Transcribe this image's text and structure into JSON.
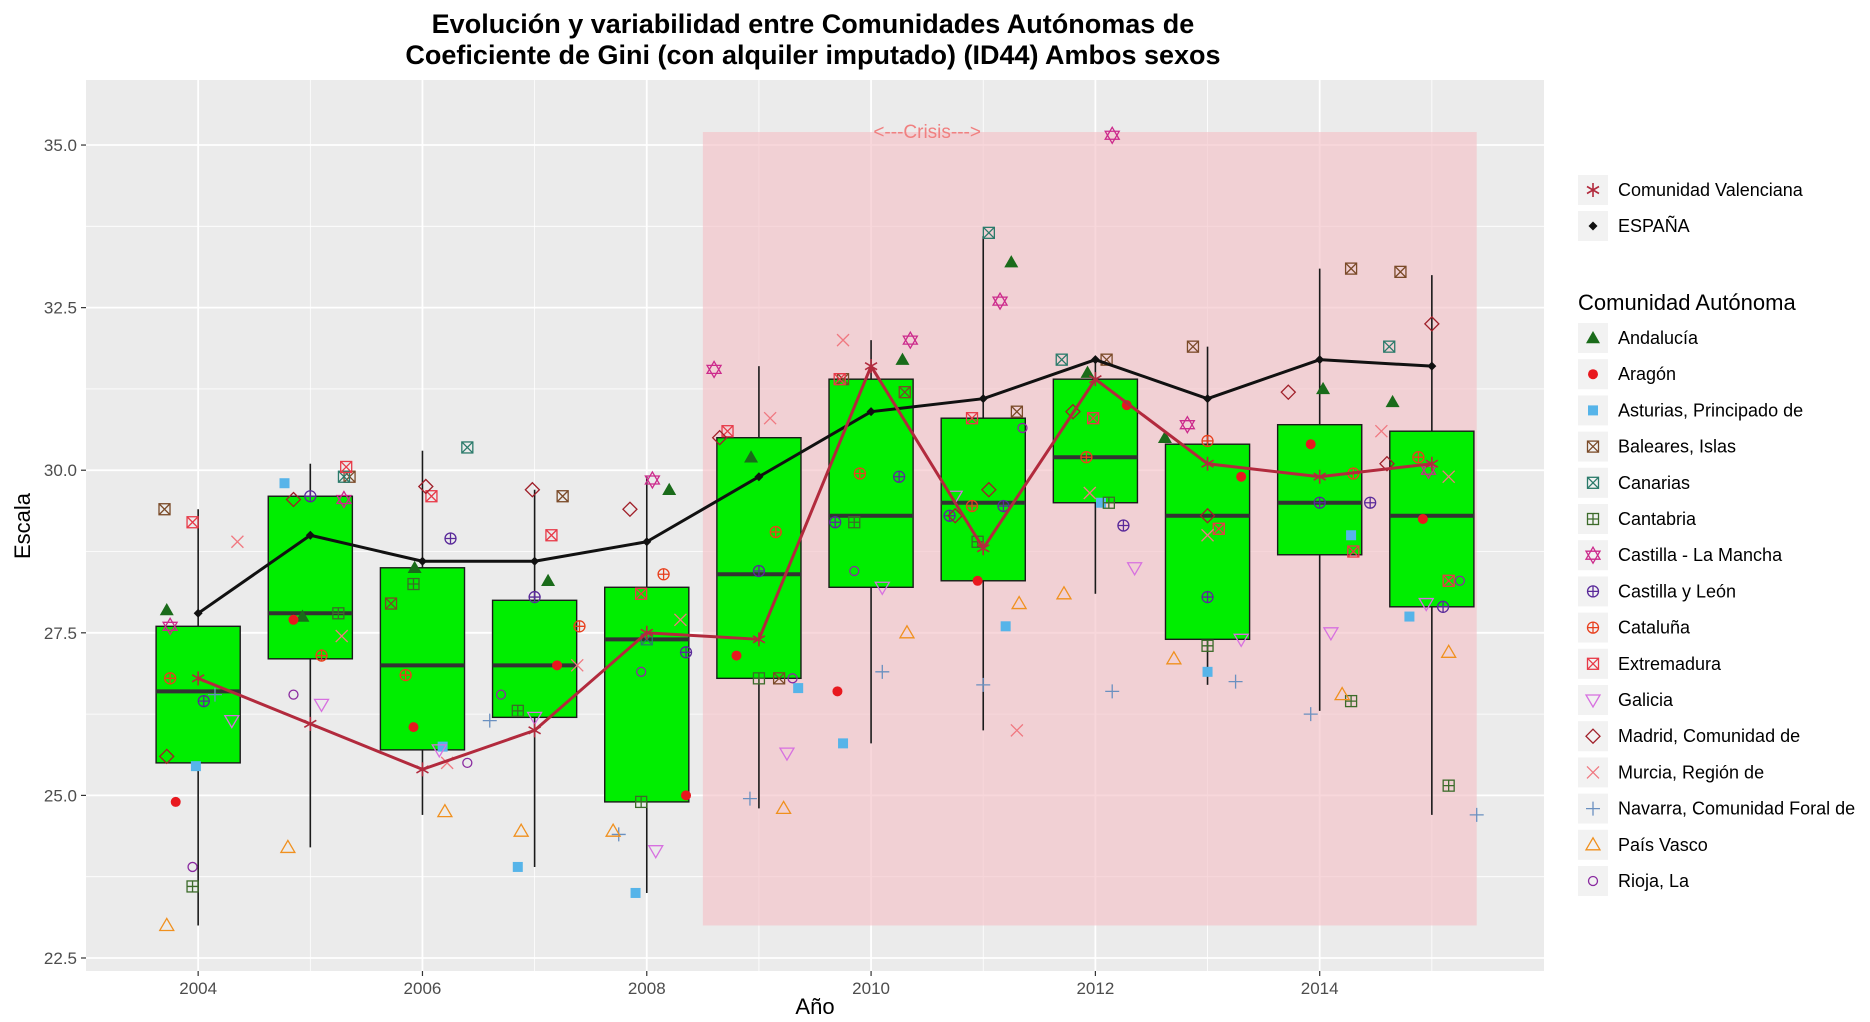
{
  "chart_data": {
    "type": "boxplot",
    "title_line1": "Evolución y variabilidad entre Comunidades Autónomas de",
    "title_line2": "Coeficiente de Gini (con alquiler imputado) (ID44) Ambos sexos",
    "xlabel": "Año",
    "ylabel": "Escala",
    "xlim": [
      2003.0,
      2016.0
    ],
    "ylim": [
      22.3,
      36.0
    ],
    "x_ticks": [
      2004,
      2006,
      2008,
      2010,
      2012,
      2014
    ],
    "y_ticks": [
      22.5,
      25.0,
      27.5,
      30.0,
      32.5,
      35.0
    ],
    "y_tick_labels": [
      "22.5",
      "25.0",
      "27.5",
      "30.0",
      "32.5",
      "35.0"
    ],
    "background_color": "#ebebeb",
    "grid": true,
    "crisis": {
      "label": "<---Crisis--->",
      "x_start": 2008.5,
      "x_end": 2015.4,
      "y_min": 23.0,
      "y_max": 35.2,
      "color": "#f4c2c8"
    },
    "boxes": [
      {
        "year": 2004,
        "whisker_low": 23.0,
        "q1": 25.5,
        "median": 26.6,
        "q3": 27.6,
        "whisker_high": 29.4
      },
      {
        "year": 2005,
        "whisker_low": 24.2,
        "q1": 27.1,
        "median": 27.8,
        "q3": 29.6,
        "whisker_high": 30.1
      },
      {
        "year": 2006,
        "whisker_low": 24.7,
        "q1": 25.7,
        "median": 27.0,
        "q3": 28.5,
        "whisker_high": 30.3
      },
      {
        "year": 2007,
        "whisker_low": 23.9,
        "q1": 26.2,
        "median": 27.0,
        "q3": 28.0,
        "whisker_high": 29.7
      },
      {
        "year": 2008,
        "whisker_low": 23.5,
        "q1": 24.9,
        "median": 27.4,
        "q3": 28.2,
        "whisker_high": 29.9
      },
      {
        "year": 2009,
        "whisker_low": 24.8,
        "q1": 26.8,
        "median": 28.4,
        "q3": 30.5,
        "whisker_high": 31.6
      },
      {
        "year": 2010,
        "whisker_low": 25.8,
        "q1": 28.2,
        "median": 29.3,
        "q3": 31.4,
        "whisker_high": 32.0
      },
      {
        "year": 2011,
        "whisker_low": 26.0,
        "q1": 28.3,
        "median": 29.5,
        "q3": 30.8,
        "whisker_high": 33.6
      },
      {
        "year": 2012,
        "whisker_low": 28.1,
        "q1": 29.5,
        "median": 30.2,
        "q3": 31.4,
        "whisker_high": 31.7
      },
      {
        "year": 2013,
        "whisker_low": 26.7,
        "q1": 27.4,
        "median": 29.3,
        "q3": 30.4,
        "whisker_high": 31.9
      },
      {
        "year": 2014,
        "whisker_low": 26.3,
        "q1": 28.7,
        "median": 29.5,
        "q3": 30.7,
        "whisker_high": 33.1
      },
      {
        "year": 2015,
        "whisker_low": 24.7,
        "q1": 27.9,
        "median": 29.3,
        "q3": 30.6,
        "whisker_high": 33.0
      }
    ],
    "box_fill": "#00ee00",
    "series": [
      {
        "name": "Comunidad Valenciana",
        "color": "#b22a3d",
        "shape": "asterisk",
        "x": [
          2004,
          2005,
          2006,
          2007,
          2008,
          2009,
          2010,
          2011,
          2012,
          2013,
          2014,
          2015
        ],
        "values": [
          26.8,
          26.1,
          25.4,
          26.0,
          27.5,
          27.4,
          31.6,
          28.8,
          31.4,
          30.1,
          29.9,
          30.1
        ]
      },
      {
        "name": "ESPAÑA",
        "color": "#111111",
        "shape": "diamond",
        "x": [
          2004,
          2005,
          2006,
          2007,
          2008,
          2009,
          2010,
          2011,
          2012,
          2013,
          2014,
          2015
        ],
        "values": [
          27.8,
          29.0,
          28.6,
          28.6,
          28.9,
          29.9,
          30.9,
          31.1,
          31.7,
          31.1,
          31.7,
          31.6
        ]
      }
    ],
    "legend_title": "Comunidad Autónoma",
    "legend_position": "right",
    "regions": [
      {
        "name": "Andalucía",
        "color": "#1a6b1a",
        "shape": "triangle-filled",
        "x": [
          2003.72,
          2004.93,
          2005.93,
          2007.12,
          2008.2,
          2008.93,
          2010.28,
          2011.25,
          2011.93,
          2012.62,
          2014.03,
          2014.65
        ],
        "values": [
          27.85,
          27.75,
          28.5,
          28.3,
          29.7,
          30.2,
          31.7,
          33.2,
          31.5,
          30.5,
          31.25,
          31.05
        ]
      },
      {
        "name": "Aragón",
        "color": "#e8181e",
        "shape": "circle-filled",
        "x": [
          2003.8,
          2004.85,
          2005.92,
          2007.2,
          2008.35,
          2008.8,
          2009.7,
          2010.95,
          2012.28,
          2013.3,
          2013.92,
          2014.92
        ],
        "values": [
          24.9,
          27.7,
          26.05,
          27.0,
          25.0,
          27.15,
          26.6,
          28.3,
          31.0,
          29.9,
          30.4,
          29.25
        ]
      },
      {
        "name": "Asturias, Principado de",
        "color": "#56b4e9",
        "shape": "square-filled",
        "x": [
          2003.98,
          2004.77,
          2006.18,
          2006.85,
          2007.9,
          2009.35,
          2009.75,
          2011.2,
          2012.05,
          2013.0,
          2014.28,
          2014.8
        ],
        "values": [
          25.45,
          29.8,
          25.75,
          23.9,
          23.5,
          26.65,
          25.8,
          27.6,
          29.5,
          26.9,
          29.0,
          27.75
        ]
      },
      {
        "name": "Baleares, Islas",
        "color": "#7a4a28",
        "shape": "square-x",
        "x": [
          2003.7,
          2005.35,
          2005.72,
          2007.25,
          2009.18,
          2009.75,
          2010.3,
          2011.3,
          2012.1,
          2012.87,
          2014.28,
          2014.72
        ],
        "values": [
          29.4,
          29.9,
          27.95,
          29.6,
          26.8,
          31.4,
          31.2,
          30.9,
          31.7,
          31.9,
          33.1,
          33.05
        ]
      },
      {
        "name": "Canarias",
        "color": "#2a7a6a",
        "shape": "square-cross",
        "x": [
          2005.3,
          2006.4,
          2008.0,
          2011.05,
          2011.7,
          2014.62
        ],
        "values": [
          29.9,
          30.35,
          27.4,
          33.65,
          31.7,
          31.9
        ]
      },
      {
        "name": "Cantabria",
        "color": "#3c6b2a",
        "shape": "square-plus",
        "x": [
          2003.95,
          2005.25,
          2005.92,
          2006.85,
          2007.95,
          2009.0,
          2009.85,
          2010.95,
          2012.12,
          2013.0,
          2014.28,
          2015.15
        ],
        "values": [
          23.6,
          27.8,
          28.25,
          26.3,
          24.9,
          26.8,
          29.2,
          28.9,
          29.5,
          27.3,
          26.45,
          25.15
        ]
      },
      {
        "name": "Castilla - La Mancha",
        "color": "#cc2a8c",
        "shape": "star-of-david",
        "x": [
          2003.75,
          2005.3,
          2008.05,
          2008.6,
          2010.35,
          2011.15,
          2012.15,
          2012.82,
          2014.97
        ],
        "values": [
          27.6,
          29.55,
          29.85,
          31.55,
          32.0,
          32.6,
          35.15,
          30.7,
          30.0
        ]
      },
      {
        "name": "Castilla y León",
        "color": "#5a2a9a",
        "shape": "circle-plus",
        "x": [
          2004.05,
          2005.0,
          2006.25,
          2007.0,
          2008.35,
          2009.0,
          2009.68,
          2010.25,
          2010.7,
          2011.18,
          2012.25,
          2013.0,
          2014.0,
          2014.45,
          2015.1
        ],
        "values": [
          26.45,
          29.6,
          28.95,
          28.05,
          27.2,
          28.45,
          29.2,
          29.9,
          29.3,
          29.45,
          29.15,
          28.05,
          29.5,
          29.5,
          27.9
        ]
      },
      {
        "name": "Cataluña",
        "color": "#e8401e",
        "shape": "circle-plus",
        "x": [
          2003.75,
          2005.1,
          2005.85,
          2007.4,
          2008.15,
          2009.15,
          2009.9,
          2010.9,
          2011.92,
          2013.0,
          2014.3,
          2014.88
        ],
        "values": [
          26.8,
          27.15,
          26.85,
          27.6,
          28.4,
          29.05,
          29.95,
          29.45,
          30.2,
          30.45,
          29.95,
          30.2
        ]
      },
      {
        "name": "Extremadura",
        "color": "#e83a48",
        "shape": "square-x",
        "x": [
          2003.95,
          2005.32,
          2006.08,
          2007.15,
          2007.95,
          2008.72,
          2009.72,
          2010.9,
          2011.98,
          2013.1,
          2014.3,
          2015.15
        ],
        "values": [
          29.2,
          30.05,
          29.6,
          29.0,
          28.1,
          30.6,
          31.4,
          30.8,
          30.8,
          29.1,
          28.75,
          28.3
        ]
      },
      {
        "name": "Galicia",
        "color": "#d770e0",
        "shape": "triangle-down",
        "x": [
          2004.3,
          2005.1,
          2006.15,
          2007.0,
          2008.08,
          2009.25,
          2010.1,
          2010.75,
          2012.35,
          2013.3,
          2014.1,
          2014.95
        ],
        "values": [
          26.15,
          26.4,
          25.7,
          26.2,
          24.15,
          25.65,
          28.2,
          29.6,
          28.5,
          27.4,
          27.5,
          27.95
        ]
      },
      {
        "name": "Madrid, Comunidad de",
        "color": "#a0202a",
        "shape": "diamond-open",
        "x": [
          2003.72,
          2004.85,
          2006.03,
          2006.98,
          2007.85,
          2008.65,
          2010.75,
          2011.05,
          2011.8,
          2013.0,
          2013.72,
          2014.6,
          2015.0
        ],
        "values": [
          25.6,
          29.55,
          29.75,
          29.7,
          29.4,
          30.5,
          29.3,
          29.7,
          30.9,
          29.3,
          31.2,
          30.1,
          32.25
        ]
      },
      {
        "name": "Murcia, Región de",
        "color": "#f07880",
        "shape": "x",
        "x": [
          2004.35,
          2005.28,
          2006.22,
          2007.38,
          2008.3,
          2009.1,
          2009.75,
          2011.3,
          2011.95,
          2013.0,
          2014.55,
          2015.15
        ],
        "values": [
          28.9,
          27.45,
          25.5,
          27.0,
          27.7,
          30.8,
          32.0,
          26.0,
          29.65,
          29.0,
          30.6,
          29.9
        ]
      },
      {
        "name": "Navarra, Comunidad Foral de",
        "color": "#6a90c0",
        "shape": "plus",
        "x": [
          2004.15,
          2006.6,
          2007.75,
          2008.92,
          2010.1,
          2011.0,
          2012.15,
          2013.25,
          2013.92,
          2015.4
        ],
        "values": [
          26.55,
          26.15,
          24.4,
          24.95,
          26.9,
          26.7,
          26.6,
          26.75,
          26.25,
          24.7
        ]
      },
      {
        "name": "País Vasco",
        "color": "#f0901e",
        "shape": "triangle-open",
        "x": [
          2003.72,
          2004.8,
          2006.2,
          2006.88,
          2007.7,
          2009.22,
          2010.32,
          2011.32,
          2011.72,
          2012.7,
          2014.2,
          2015.15
        ],
        "values": [
          23.0,
          24.2,
          24.75,
          24.45,
          24.45,
          24.8,
          27.5,
          27.95,
          28.1,
          27.1,
          26.55,
          27.2
        ]
      },
      {
        "name": "Rioja, La",
        "color": "#8a2aa0",
        "shape": "circle-open",
        "x": [
          2003.95,
          2004.85,
          2006.4,
          2006.7,
          2007.95,
          2009.3,
          2009.85,
          2011.35,
          2015.25
        ],
        "values": [
          23.9,
          26.55,
          25.5,
          26.55,
          26.9,
          26.8,
          28.45,
          30.65,
          28.3
        ]
      }
    ]
  }
}
